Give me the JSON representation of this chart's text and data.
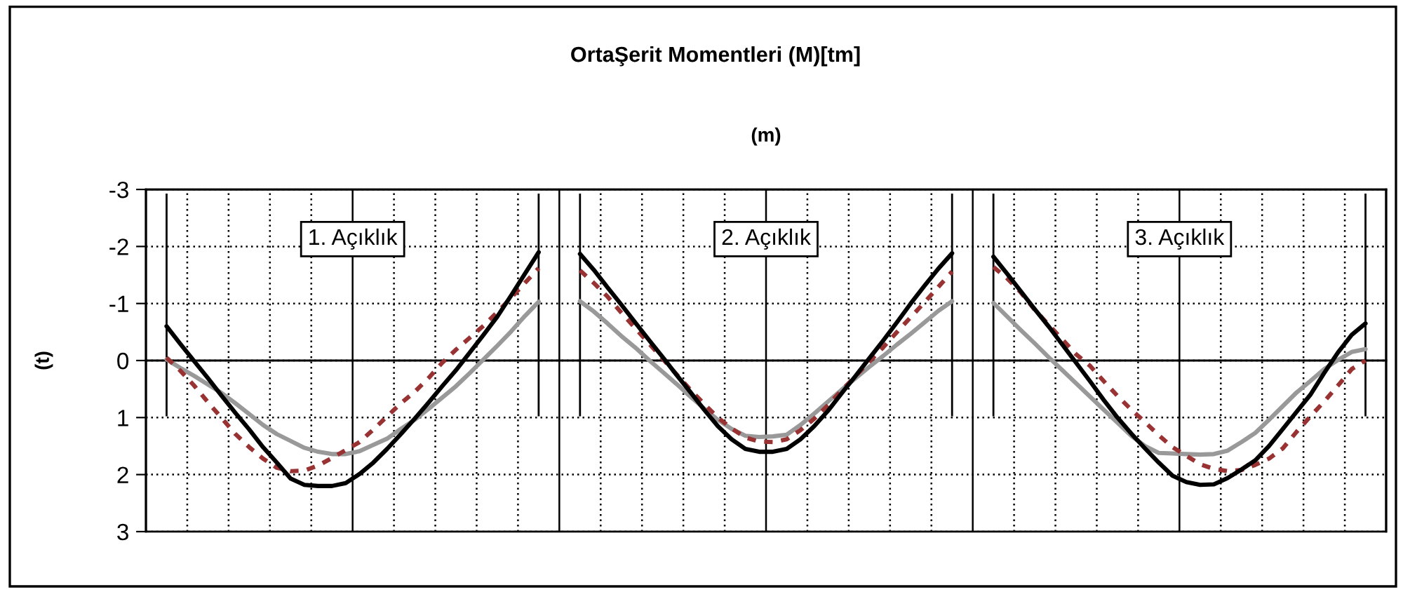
{
  "chart_data": {
    "type": "line",
    "title": "OrtaŞerit Momentleri (M)[tm]",
    "xlabel": "(m)",
    "ylabel": "(t)",
    "categories": [
      null,
      null,
      null,
      null,
      null,
      null,
      null,
      null,
      null,
      null,
      null,
      null,
      null,
      null,
      null,
      null,
      null,
      null,
      null,
      null,
      null,
      null,
      null,
      null,
      null,
      null,
      null,
      null,
      null,
      null,
      null,
      null,
      null,
      null,
      null,
      null,
      null,
      null,
      null,
      null,
      null,
      null,
      null,
      null,
      null,
      null,
      null,
      null,
      null,
      null,
      null,
      null,
      null,
      null,
      null,
      null,
      null,
      null,
      null,
      null,
      null,
      null,
      null,
      null,
      null,
      null,
      null,
      null,
      null,
      null,
      null,
      null,
      null,
      null,
      null,
      null,
      null,
      null,
      null,
      null,
      null,
      null,
      null,
      null,
      null,
      null,
      null,
      null,
      null,
      null
    ],
    "series": [
      {
        "color": "#999999",
        "line_style": "solid",
        "values": [
          null,
          -0.02,
          0.13,
          0.27,
          0.42,
          0.57,
          0.75,
          0.94,
          1.13,
          1.29,
          1.41,
          1.53,
          1.6,
          1.64,
          1.64,
          1.59,
          1.48,
          1.37,
          1.2,
          1.04,
          0.85,
          0.65,
          0.45,
          0.22,
          -0.02,
          -0.26,
          -0.51,
          -0.78,
          -1.03,
          null,
          null,
          -1.04,
          -0.86,
          -0.65,
          -0.43,
          -0.23,
          -0.01,
          0.2,
          0.41,
          0.63,
          0.84,
          1.04,
          1.2,
          1.32,
          1.34,
          1.33,
          1.3,
          1.13,
          0.93,
          0.72,
          0.51,
          0.31,
          0.11,
          -0.08,
          -0.28,
          -0.47,
          -0.67,
          -0.87,
          -1.04,
          null,
          null,
          -1.01,
          -0.77,
          -0.53,
          -0.3,
          -0.06,
          0.17,
          0.4,
          0.63,
          0.86,
          1.09,
          1.32,
          1.5,
          1.62,
          1.63,
          1.64,
          1.65,
          1.64,
          1.58,
          1.43,
          1.27,
          1.04,
          0.8,
          0.56,
          0.36,
          0.15,
          -0.01,
          -0.15,
          -0.2,
          null
        ]
      },
      {
        "color": "#993333",
        "line_style": "dashed",
        "values": [
          null,
          -0.05,
          0.18,
          0.44,
          0.73,
          1.01,
          1.29,
          1.52,
          1.72,
          1.88,
          1.94,
          1.93,
          1.84,
          1.71,
          1.57,
          1.43,
          1.21,
          0.98,
          0.75,
          0.55,
          0.31,
          0.04,
          -0.19,
          -0.4,
          -0.61,
          -0.85,
          -1.1,
          -1.36,
          -1.62,
          null,
          null,
          -1.58,
          -1.36,
          -1.12,
          -0.84,
          -0.57,
          -0.3,
          -0.03,
          0.24,
          0.51,
          0.76,
          1.0,
          1.19,
          1.35,
          1.42,
          1.43,
          1.38,
          1.22,
          1.02,
          0.78,
          0.52,
          0.27,
          0.02,
          -0.23,
          -0.5,
          -0.76,
          -1.02,
          -1.29,
          -1.56,
          null,
          null,
          -1.64,
          -1.44,
          -1.19,
          -0.89,
          -0.63,
          -0.37,
          -0.11,
          0.09,
          0.36,
          0.62,
          0.86,
          1.08,
          1.31,
          1.52,
          1.67,
          1.82,
          1.9,
          1.94,
          1.92,
          1.83,
          1.72,
          1.54,
          1.25,
          0.98,
          0.72,
          0.44,
          0.15,
          0.0,
          null
        ]
      },
      {
        "color": "#000000",
        "line_style": "solid",
        "values": [
          null,
          -0.6,
          -0.29,
          0.01,
          0.31,
          0.62,
          0.92,
          1.21,
          1.52,
          1.79,
          2.07,
          2.18,
          2.2,
          2.2,
          2.15,
          1.99,
          1.79,
          1.55,
          1.29,
          1.02,
          0.74,
          0.45,
          0.17,
          -0.14,
          -0.45,
          -0.77,
          -1.14,
          -1.52,
          -1.9,
          null,
          null,
          -1.87,
          -1.59,
          -1.28,
          -0.98,
          -0.67,
          -0.36,
          -0.06,
          0.25,
          0.55,
          0.86,
          1.15,
          1.38,
          1.55,
          1.6,
          1.6,
          1.55,
          1.38,
          1.15,
          0.88,
          0.57,
          0.27,
          -0.04,
          -0.35,
          -0.67,
          -1.0,
          -1.31,
          -1.61,
          -1.88,
          null,
          null,
          -1.82,
          -1.52,
          -1.21,
          -0.9,
          -0.6,
          -0.28,
          0.04,
          0.36,
          0.69,
          1.0,
          1.28,
          1.54,
          1.79,
          2.02,
          2.13,
          2.18,
          2.17,
          2.06,
          1.91,
          1.75,
          1.5,
          1.2,
          0.9,
          0.6,
          0.22,
          -0.14,
          -0.45,
          -0.65,
          null
        ]
      }
    ],
    "ylim": [
      3,
      -3
    ],
    "yticks": [
      -3,
      -2,
      -1,
      0,
      1,
      2,
      3
    ],
    "grid": true,
    "tick_labels": "y",
    "annotations": [
      "1. Açıklık",
      "2. Açıklık",
      "3. Açıklık"
    ]
  }
}
